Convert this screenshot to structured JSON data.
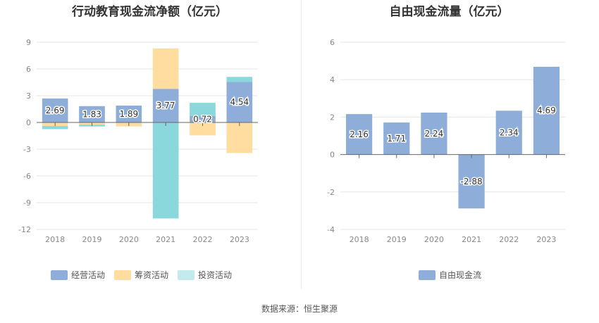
{
  "source_text": "数据来源：恒生聚源",
  "chart_data": [
    {
      "type": "bar",
      "stacked": true,
      "title": "行动教育现金流净额（亿元）",
      "categories": [
        "2018",
        "2019",
        "2020",
        "2021",
        "2022",
        "2023"
      ],
      "ylim": [
        -12,
        9
      ],
      "yticks": [
        9,
        6,
        3,
        0,
        -3,
        -6,
        -9,
        -12
      ],
      "grid": true,
      "legend_position": "bottom",
      "series": [
        {
          "name": "经营活动",
          "color": "#8eadd9",
          "values": [
            2.69,
            1.83,
            1.89,
            3.77,
            0.72,
            4.54
          ]
        },
        {
          "name": "筹资活动",
          "color": "#ffdca0",
          "values": [
            -0.4,
            -0.25,
            -0.45,
            4.53,
            -1.45,
            -3.43
          ]
        },
        {
          "name": "投资活动",
          "color": "#8ad7dc",
          "values": [
            -0.35,
            -0.2,
            0.0,
            -10.77,
            1.48,
            0.57
          ]
        }
      ],
      "data_labels": [
        "2.69",
        "1.83",
        "1.89",
        "3.77",
        "0.72",
        "4.54"
      ]
    },
    {
      "type": "bar",
      "title": "自由现金流量（亿元）",
      "categories": [
        "2018",
        "2019",
        "2020",
        "2021",
        "2022",
        "2023"
      ],
      "ylim": [
        -4,
        6
      ],
      "yticks": [
        6,
        4,
        2,
        0,
        -2,
        -4
      ],
      "grid": true,
      "legend_position": "bottom",
      "series": [
        {
          "name": "自由现金流",
          "color": "#8eadd9",
          "values": [
            2.16,
            1.71,
            2.24,
            -2.88,
            2.34,
            4.69
          ]
        }
      ],
      "data_labels": [
        "2.16",
        "1.71",
        "2.24",
        "-2.88",
        "2.34",
        "4.69"
      ]
    }
  ]
}
